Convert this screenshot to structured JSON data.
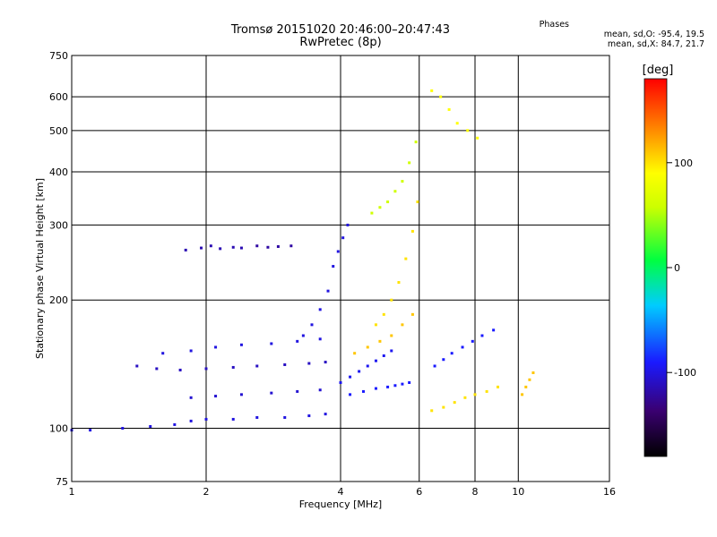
{
  "chart_data": {
    "type": "scatter",
    "title": "Tromsø 20151020 20:46:00–20:47:43",
    "subtitle": "RwPretec (8p)",
    "xlabel": "Frequency [MHz]",
    "ylabel": "Stationary phase Virtual Height [km]",
    "x_scale": "log",
    "y_scale": "log",
    "xlim": [
      1,
      16
    ],
    "ylim": [
      75,
      750
    ],
    "x_ticks": [
      1,
      2,
      4,
      6,
      8,
      10,
      16
    ],
    "y_ticks": [
      75,
      100,
      200,
      300,
      400,
      500,
      600,
      750
    ],
    "grid": true,
    "colorbar": {
      "label": "[deg]",
      "min": -180,
      "max": 180,
      "ticks": [
        100,
        0,
        -100
      ]
    },
    "phase_stats": {
      "heading": "Phases",
      "O_label": "mean, sd,O:",
      "O_values": "-95.4, 19.5",
      "X_label": "mean, sd,X:",
      "X_values": "84.7, 21.7"
    },
    "traces": [
      {
        "f": [
          1.0,
          1.1,
          1.3,
          1.5,
          1.7,
          1.85,
          2.0,
          2.3,
          2.6,
          3.0,
          3.4,
          3.7
        ],
        "h": [
          99,
          99,
          100,
          101,
          102,
          104,
          105,
          105,
          106,
          106,
          107,
          108
        ],
        "phase": -100
      },
      {
        "f": [
          1.4,
          1.55,
          1.75,
          2.0,
          2.3,
          2.6,
          3.0,
          3.4,
          3.7
        ],
        "h": [
          140,
          138,
          137,
          138,
          139,
          140,
          141,
          142,
          143
        ],
        "phase": -110
      },
      {
        "f": [
          1.6,
          1.85,
          2.1,
          2.4,
          2.8,
          3.2,
          3.6
        ],
        "h": [
          150,
          152,
          155,
          157,
          158,
          160,
          162
        ],
        "phase": -100
      },
      {
        "f": [
          1.85,
          2.1,
          2.4,
          2.8,
          3.2,
          3.6
        ],
        "h": [
          118,
          119,
          120,
          121,
          122,
          123
        ],
        "phase": -105
      },
      {
        "f": [
          1.8,
          1.95,
          2.05,
          2.15,
          2.3,
          2.4
        ],
        "h": [
          262,
          265,
          268,
          264,
          266,
          265
        ],
        "phase": -115
      },
      {
        "f": [
          2.6,
          2.75,
          2.9,
          3.1
        ],
        "h": [
          268,
          266,
          267,
          268
        ],
        "phase": -120
      },
      {
        "f": [
          3.3,
          3.45,
          3.6,
          3.75,
          3.85,
          3.95,
          4.05,
          4.15
        ],
        "h": [
          165,
          175,
          190,
          210,
          240,
          260,
          280,
          300
        ],
        "phase": -100
      },
      {
        "f": [
          4.0,
          4.2,
          4.4,
          4.6,
          4.8,
          5.0,
          5.2
        ],
        "h": [
          128,
          132,
          136,
          140,
          144,
          148,
          152
        ],
        "phase": -95
      },
      {
        "f": [
          4.2,
          4.5,
          4.8,
          5.1,
          5.3,
          5.5,
          5.7
        ],
        "h": [
          120,
          122,
          124,
          125,
          126,
          127,
          128
        ],
        "phase": -90
      },
      {
        "f": [
          4.3,
          4.6,
          4.9,
          5.2,
          5.5,
          5.8
        ],
        "h": [
          150,
          155,
          160,
          165,
          175,
          185
        ],
        "phase": 110
      },
      {
        "f": [
          4.8,
          5.0,
          5.2,
          5.4,
          5.6,
          5.8,
          5.95
        ],
        "h": [
          175,
          185,
          200,
          220,
          250,
          290,
          340
        ],
        "phase": 100
      },
      {
        "f": [
          4.7,
          4.9,
          5.1,
          5.3,
          5.5,
          5.7,
          5.9
        ],
        "h": [
          320,
          330,
          340,
          360,
          380,
          420,
          470
        ],
        "phase": 60
      },
      {
        "f": [
          6.4,
          6.7,
          7.0,
          7.3,
          7.7,
          8.1
        ],
        "h": [
          620,
          600,
          560,
          520,
          500,
          480
        ],
        "phase": 90
      },
      {
        "f": [
          6.4,
          6.8,
          7.2,
          7.6,
          8.0,
          8.5,
          9.0
        ],
        "h": [
          110,
          112,
          115,
          118,
          120,
          122,
          125
        ],
        "phase": 100
      },
      {
        "f": [
          6.5,
          6.8,
          7.1,
          7.5,
          7.9,
          8.3,
          8.8
        ],
        "h": [
          140,
          145,
          150,
          155,
          160,
          165,
          170
        ],
        "phase": -90
      },
      {
        "f": [
          10.2,
          10.4,
          10.6,
          10.8
        ],
        "h": [
          120,
          125,
          130,
          135
        ],
        "phase": 110
      }
    ]
  }
}
